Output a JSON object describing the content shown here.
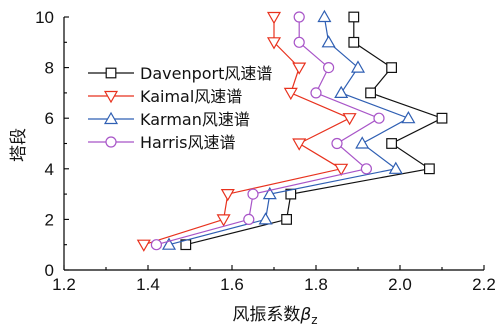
{
  "chart_data": {
    "type": "line",
    "xlabel": "风振系数βz",
    "ylabel": "塔段",
    "xlim": [
      1.2,
      2.2
    ],
    "ylim": [
      0,
      10
    ],
    "xticks": [
      "1.2",
      "1.4",
      "1.6",
      "1.8",
      "2.0",
      "2.2"
    ],
    "yticks": [
      "0",
      "2",
      "4",
      "6",
      "8",
      "10"
    ],
    "grid": false,
    "legend": "upper-left",
    "series": [
      {
        "name": "Davenport风速谱",
        "color": "#111111",
        "marker": "square",
        "points": [
          [
            1.49,
            1
          ],
          [
            1.73,
            2
          ],
          [
            1.74,
            3
          ],
          [
            2.07,
            4
          ],
          [
            1.98,
            5
          ],
          [
            2.1,
            6
          ],
          [
            1.93,
            7
          ],
          [
            1.98,
            8
          ],
          [
            1.89,
            9
          ],
          [
            1.89,
            10
          ]
        ]
      },
      {
        "name": "Kaimal风速谱",
        "color": "#e8321e",
        "marker": "triangle-down",
        "points": [
          [
            1.39,
            1
          ],
          [
            1.58,
            2
          ],
          [
            1.59,
            3
          ],
          [
            1.86,
            4
          ],
          [
            1.76,
            5
          ],
          [
            1.88,
            6
          ],
          [
            1.74,
            7
          ],
          [
            1.76,
            8
          ],
          [
            1.7,
            9
          ],
          [
            1.7,
            10
          ]
        ]
      },
      {
        "name": "Karman风速谱",
        "color": "#2f5fb3",
        "marker": "triangle-up",
        "points": [
          [
            1.45,
            1
          ],
          [
            1.68,
            2
          ],
          [
            1.69,
            3
          ],
          [
            1.99,
            4
          ],
          [
            1.91,
            5
          ],
          [
            2.02,
            6
          ],
          [
            1.86,
            7
          ],
          [
            1.9,
            8
          ],
          [
            1.83,
            9
          ],
          [
            1.82,
            10
          ]
        ]
      },
      {
        "name": "Harris风速谱",
        "color": "#a855c8",
        "marker": "circle",
        "points": [
          [
            1.42,
            1
          ],
          [
            1.64,
            2
          ],
          [
            1.65,
            3
          ],
          [
            1.92,
            4
          ],
          [
            1.85,
            5
          ],
          [
            1.95,
            6
          ],
          [
            1.8,
            7
          ],
          [
            1.83,
            8
          ],
          [
            1.76,
            9
          ],
          [
            1.76,
            10
          ]
        ]
      }
    ]
  }
}
